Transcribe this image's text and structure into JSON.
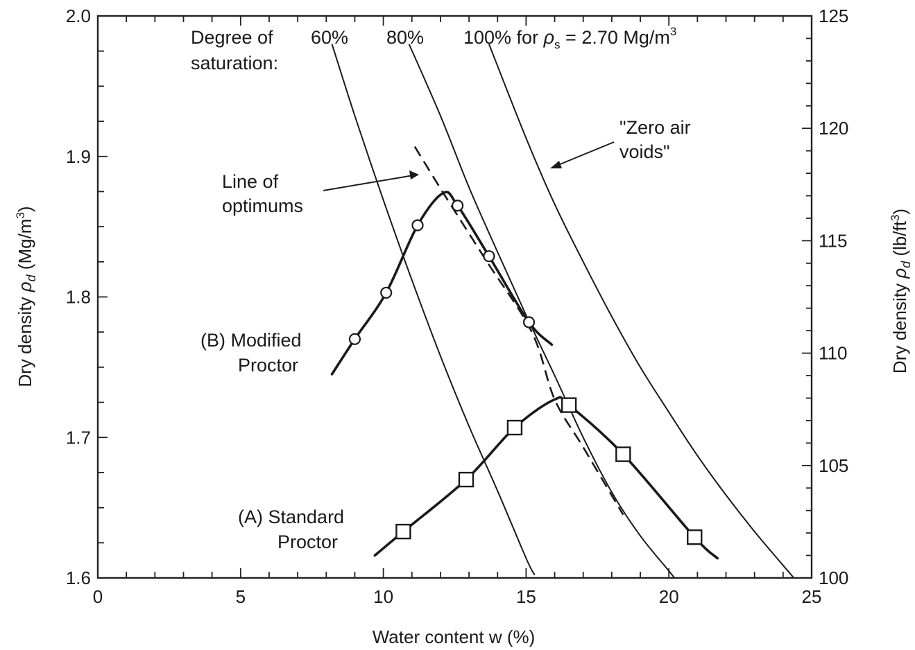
{
  "chart_data": {
    "type": "line",
    "title": "",
    "xlabel": "Water content w (%)",
    "ylabel_left": "Dry density ρd  (Mg/m3)",
    "ylabel_right": "Dry density ρd  (lb/ft3)",
    "xlim": [
      0,
      25
    ],
    "ylim_left": [
      1.6,
      2.0
    ],
    "ylim_right": [
      100,
      125
    ],
    "x_ticks": [
      "0",
      "5",
      "10",
      "15",
      "20",
      "25"
    ],
    "y_left_ticks": [
      "1.6",
      "1.7",
      "1.8",
      "1.9",
      "2.0"
    ],
    "y_right_ticks": [
      "100",
      "105",
      "110",
      "115",
      "120",
      "125"
    ],
    "grid": false,
    "series": [
      {
        "name": "(B) Modified Proctor",
        "marker": "circle",
        "points": [
          [
            9.0,
            1.77
          ],
          [
            10.1,
            1.803
          ],
          [
            11.2,
            1.851
          ],
          [
            12.6,
            1.865
          ],
          [
            13.7,
            1.829
          ],
          [
            15.1,
            1.782
          ]
        ],
        "curve": [
          [
            8.2,
            1.745
          ],
          [
            9.0,
            1.77
          ],
          [
            10.1,
            1.803
          ],
          [
            11.2,
            1.851
          ],
          [
            12.1,
            1.874
          ],
          [
            12.6,
            1.865
          ],
          [
            13.7,
            1.829
          ],
          [
            15.1,
            1.782
          ],
          [
            15.9,
            1.766
          ]
        ]
      },
      {
        "name": "(A) Standard Proctor",
        "marker": "square",
        "points": [
          [
            10.7,
            1.633
          ],
          [
            12.9,
            1.67
          ],
          [
            14.6,
            1.707
          ],
          [
            16.5,
            1.723
          ],
          [
            18.4,
            1.688
          ],
          [
            20.9,
            1.629
          ]
        ],
        "curve": [
          [
            9.7,
            1.616
          ],
          [
            10.7,
            1.633
          ],
          [
            12.9,
            1.67
          ],
          [
            14.6,
            1.707
          ],
          [
            16.0,
            1.727
          ],
          [
            16.5,
            1.723
          ],
          [
            18.4,
            1.688
          ],
          [
            20.9,
            1.629
          ],
          [
            21.7,
            1.614
          ]
        ]
      },
      {
        "name": "Line of optimums",
        "style": "dashed",
        "curve": [
          [
            11.1,
            1.907
          ],
          [
            12.1,
            1.874
          ],
          [
            13.6,
            1.826
          ],
          [
            15.2,
            1.775
          ],
          [
            16.0,
            1.727
          ],
          [
            17.0,
            1.693
          ],
          [
            18.4,
            1.645
          ]
        ]
      },
      {
        "name": "60%",
        "style": "thin",
        "curve": [
          [
            8.2,
            1.98
          ],
          [
            9.0,
            1.929
          ],
          [
            10.0,
            1.869
          ],
          [
            11.0,
            1.812
          ],
          [
            12.0,
            1.758
          ],
          [
            13.0,
            1.708
          ],
          [
            14.0,
            1.662
          ],
          [
            15.0,
            1.614
          ],
          [
            15.3,
            1.602
          ]
        ]
      },
      {
        "name": "80%",
        "style": "thin",
        "curve": [
          [
            10.9,
            1.98
          ],
          [
            12.0,
            1.929
          ],
          [
            13.0,
            1.878
          ],
          [
            14.0,
            1.832
          ],
          [
            15.0,
            1.787
          ],
          [
            16.0,
            1.744
          ],
          [
            17.0,
            1.7
          ],
          [
            18.0,
            1.661
          ],
          [
            19.0,
            1.63
          ],
          [
            20.0,
            1.605
          ],
          [
            20.2,
            1.6
          ]
        ]
      },
      {
        "name": "100% for ρs = 2.70 Mg/m3",
        "style": "thin",
        "curve": [
          [
            13.7,
            1.98
          ],
          [
            15.0,
            1.913
          ],
          [
            16.0,
            1.866
          ],
          [
            17.0,
            1.825
          ],
          [
            18.0,
            1.786
          ],
          [
            19.0,
            1.75
          ],
          [
            20.0,
            1.718
          ],
          [
            21.0,
            1.687
          ],
          [
            22.0,
            1.659
          ],
          [
            23.0,
            1.633
          ],
          [
            24.0,
            1.609
          ],
          [
            24.8,
            1.59
          ]
        ]
      }
    ],
    "annotations": {
      "saturation_label": [
        "Degree of",
        "saturation:"
      ],
      "pct_60": "60%",
      "pct_80": "80%",
      "pct_100_prefix": "100% for ",
      "rho": "ρ",
      "rho_sub": "s",
      "pct_100_eq": " = 2.70 Mg/m",
      "pct_100_sup": "3",
      "zero_air": [
        "\"Zero air",
        "voids\""
      ],
      "line_optimums": [
        "Line of",
        "optimums"
      ],
      "modified": [
        "(B) Modified",
        "Proctor"
      ],
      "standard": [
        "(A) Standard",
        "Proctor"
      ]
    },
    "axis_title_parts": {
      "x": "Water content w (%)",
      "left_main": "Dry density ",
      "left_rho": "ρ",
      "left_sub": "d",
      "left_unit": "  (Mg/m",
      "left_unit_sup": "3",
      "left_close": ")",
      "right_main": "Dry density ",
      "right_rho": "ρ",
      "right_sub": "d",
      "right_unit": "  (lb/ft",
      "right_unit_sup": "3",
      "right_close": ")"
    }
  }
}
